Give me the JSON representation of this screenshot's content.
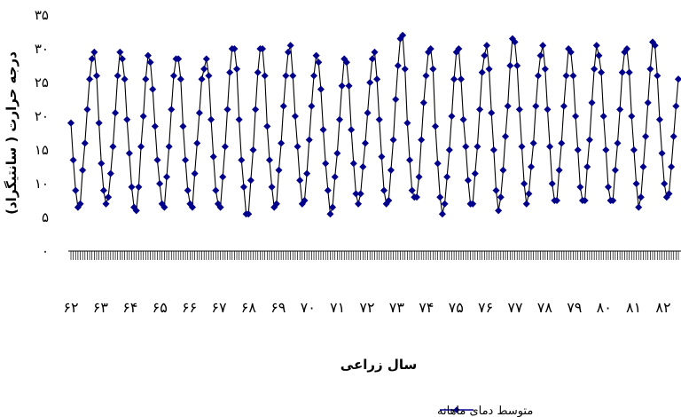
{
  "chart_data": {
    "type": "line",
    "title": "",
    "xlabel": "سال زراعی",
    "ylabel": "درجه حرارت ( سانتيگراد)",
    "ylim": [
      0,
      35
    ],
    "yticks": [
      "۰",
      "۵",
      "۱۰",
      "۱۵",
      "۲۰",
      "۲۵",
      "۳۰",
      "۳۵"
    ],
    "yticks_values": [
      0,
      5,
      10,
      15,
      20,
      25,
      30,
      35
    ],
    "xtick_labels": [
      "۶۲",
      "۶۳",
      "۶۴",
      "۶۵",
      "۶۶",
      "۶۷",
      "۶۸",
      "۶۹",
      "۷۰",
      "۷۱",
      "۷۲",
      "۷۳",
      "۷۴",
      "۷۵",
      "۷۶",
      "۷۷",
      "۷۸",
      "۷۹",
      "۸۰",
      "۸۱",
      "۸۲"
    ],
    "legend_position": "bottom",
    "grid": false,
    "series": [
      {
        "name": "متوسط دمای ماهانه",
        "color": "#00008B",
        "marker": "diamond",
        "yearly_values": [
          [
            19.0,
            13.5,
            9.0,
            6.5,
            7.0,
            12.0,
            16.0,
            21.0,
            25.5,
            28.5,
            29.5,
            26.0
          ],
          [
            19.0,
            13.0,
            9.0,
            7.0,
            8.0,
            11.5,
            15.5,
            20.5,
            26.0,
            29.5,
            28.5,
            25.5
          ],
          [
            19.5,
            14.5,
            9.5,
            6.5,
            6.0,
            9.5,
            15.5,
            20.0,
            25.5,
            29.0,
            28.0,
            24.0
          ],
          [
            18.5,
            13.5,
            10.0,
            7.0,
            6.5,
            11.0,
            15.5,
            21.0,
            26.0,
            28.5,
            28.5,
            25.5
          ],
          [
            18.5,
            13.5,
            9.0,
            7.0,
            6.5,
            11.5,
            16.0,
            20.5,
            25.5,
            27.0,
            28.5,
            26.0
          ],
          [
            19.5,
            14.0,
            9.0,
            7.0,
            6.5,
            11.0,
            15.5,
            21.0,
            26.5,
            30.0,
            30.0,
            27.0
          ],
          [
            19.5,
            13.5,
            9.5,
            5.5,
            5.5,
            10.5,
            15.0,
            21.0,
            26.5,
            30.0,
            30.0,
            26.0
          ],
          [
            18.5,
            13.5,
            9.5,
            6.5,
            7.0,
            12.0,
            16.0,
            21.5,
            26.0,
            29.5,
            30.5,
            26.0
          ],
          [
            20.0,
            15.5,
            10.5,
            7.0,
            7.5,
            11.5,
            16.5,
            21.5,
            26.0,
            29.0,
            28.0,
            24.0
          ],
          [
            18.0,
            13.0,
            9.0,
            5.5,
            6.5,
            11.0,
            14.5,
            19.5,
            24.5,
            28.5,
            28.0,
            24.5
          ],
          [
            18.0,
            13.0,
            8.5,
            7.0,
            8.5,
            12.5,
            16.0,
            20.5,
            25.0,
            28.5,
            29.5,
            25.5
          ],
          [
            19.5,
            14.0,
            9.0,
            7.0,
            7.5,
            12.0,
            16.5,
            22.5,
            27.5,
            31.5,
            32.0,
            27.0
          ],
          [
            19.0,
            13.5,
            9.0,
            8.0,
            8.0,
            11.0,
            16.5,
            22.0,
            26.0,
            29.5,
            30.0,
            27.0
          ],
          [
            18.5,
            13.0,
            8.0,
            5.5,
            7.0,
            11.0,
            15.0,
            20.0,
            25.5,
            29.5,
            30.0,
            25.5
          ],
          [
            19.5,
            15.5,
            10.5,
            7.0,
            7.0,
            11.5,
            15.5,
            21.0,
            26.5,
            29.0,
            30.5,
            27.0
          ],
          [
            20.5,
            15.0,
            9.0,
            6.0,
            8.0,
            12.0,
            17.0,
            21.5,
            27.5,
            31.5,
            31.0,
            27.5
          ],
          [
            21.0,
            15.5,
            10.0,
            7.0,
            8.5,
            12.5,
            16.0,
            21.5,
            26.0,
            29.0,
            30.5,
            27.0
          ],
          [
            21.0,
            15.5,
            10.0,
            7.5,
            7.5,
            12.0,
            16.0,
            21.5,
            26.0,
            30.0,
            29.5,
            26.0
          ],
          [
            20.0,
            15.0,
            9.5,
            7.5,
            7.5,
            12.5,
            16.5,
            22.0,
            27.0,
            30.5,
            29.0,
            26.5
          ],
          [
            20.0,
            15.0,
            9.5,
            7.5,
            7.5,
            12.0,
            16.0,
            21.0,
            26.5,
            29.5,
            30.0,
            26.5
          ],
          [
            20.0,
            15.0,
            10.0,
            6.5,
            8.0,
            12.5,
            17.0,
            22.0,
            27.0,
            31.0,
            30.5,
            26.0
          ],
          [
            19.5,
            14.5,
            10.0,
            8.0,
            8.5,
            12.5,
            17.0,
            21.5,
            25.5
          ]
        ]
      }
    ]
  }
}
